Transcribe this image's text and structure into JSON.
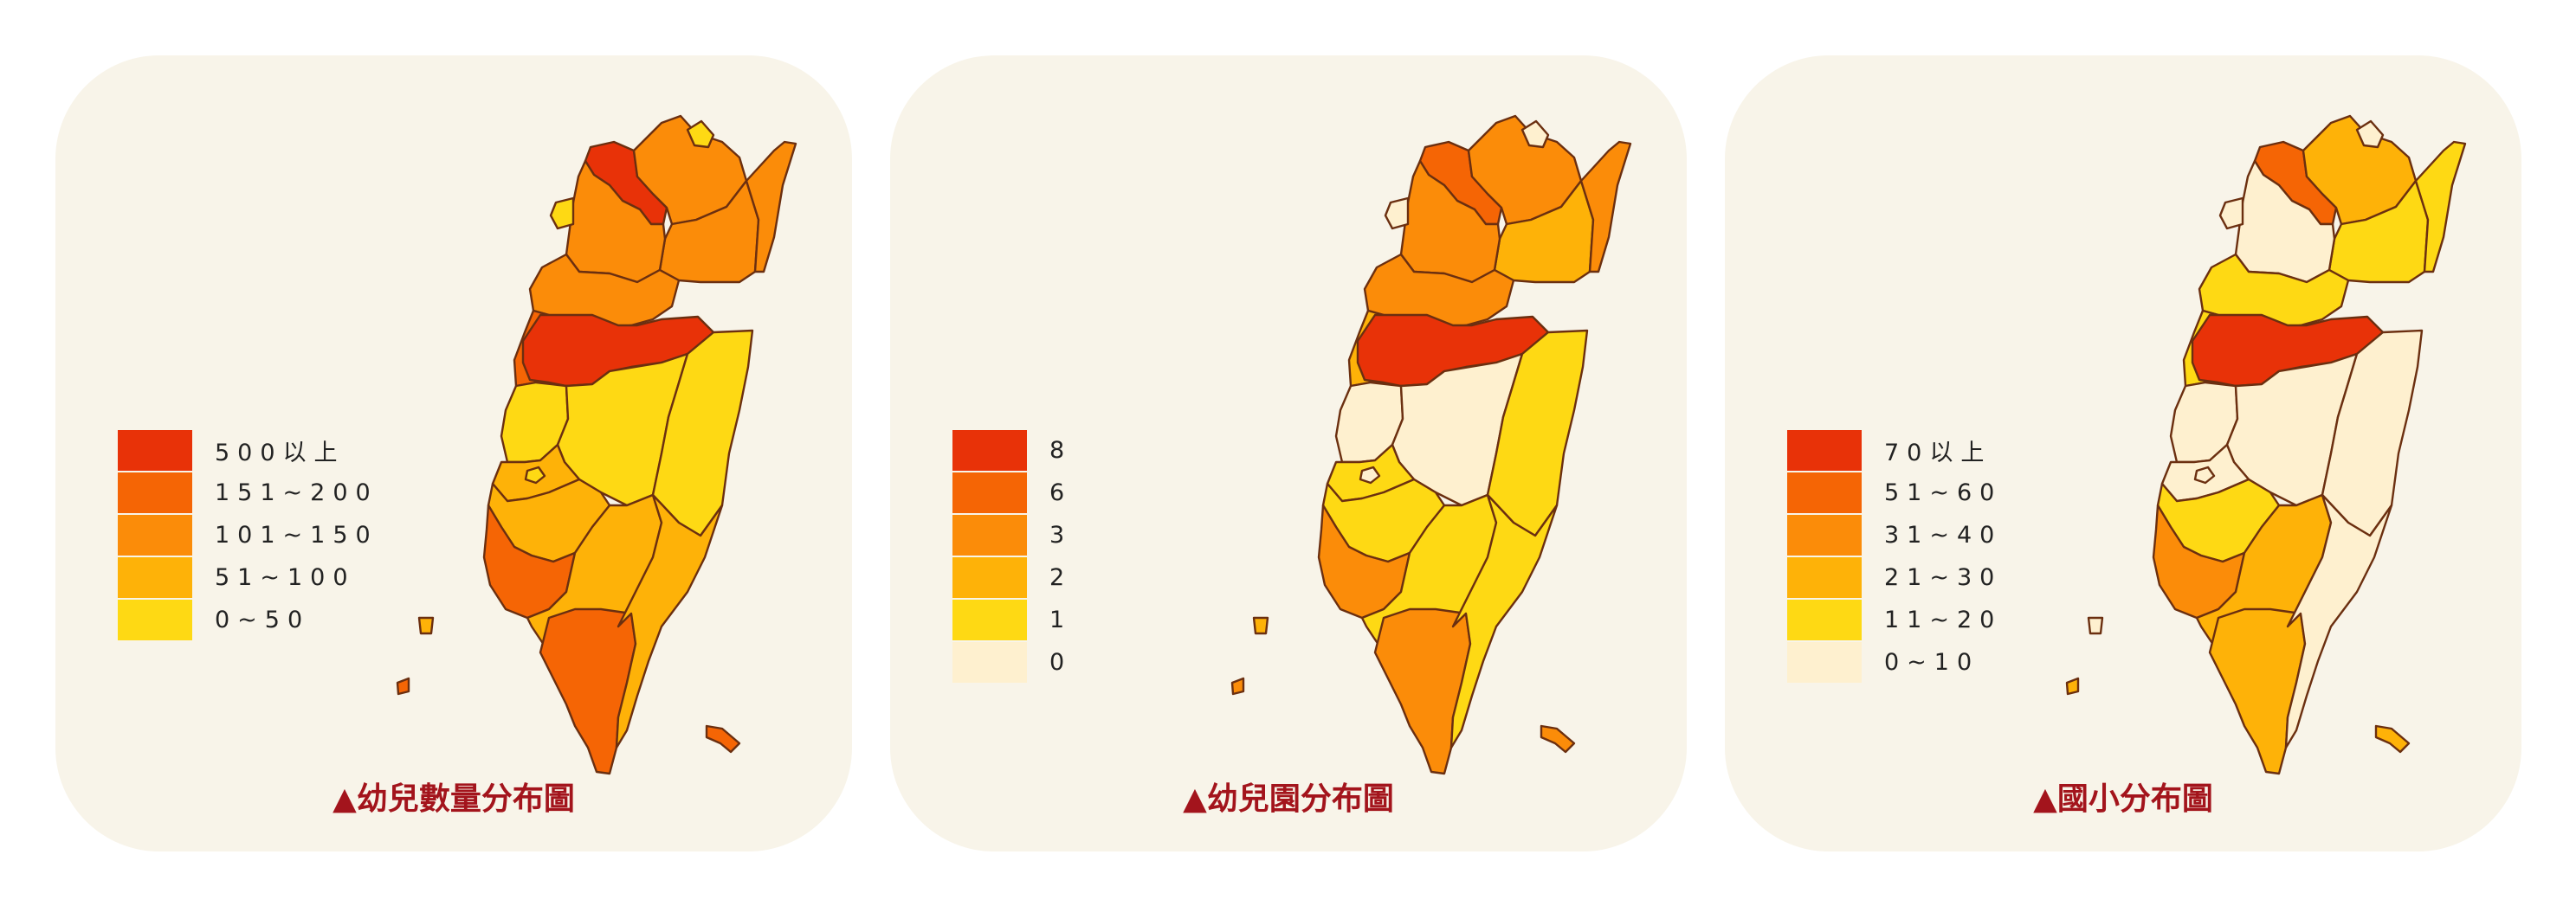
{
  "legend_colors": [
    "#e83208",
    "#f56505",
    "#fb8c09",
    "#feb208",
    "#fed914",
    "#fef0cf"
  ],
  "panels": [
    {
      "caption": "▲幼兒數量分布圖",
      "legend": [
        {
          "label": "500以上",
          "color": "#e83208"
        },
        {
          "label": "151~200",
          "color": "#f56505"
        },
        {
          "label": "101~150",
          "color": "#fb8c09"
        },
        {
          "label": "51~100",
          "color": "#feb208"
        },
        {
          "label": "0~50",
          "color": "#fed914"
        }
      ],
      "region_levels": {
        "taipei": 0,
        "new-taipei-north": 2,
        "new-taipei-east": 2,
        "keelung": 4,
        "taoyuan": 2,
        "hsinchu-county": 2,
        "hsinchu-city": 4,
        "yilan": 2,
        "taichung": 0,
        "miaoli": 1,
        "nantou": 4,
        "hualien": 4,
        "changhua": 4,
        "yunlin": 3,
        "chiayi-county": 3,
        "chiayi-city": 4,
        "tainan": 1,
        "kaohsiung": 3,
        "pingtung": 1,
        "taitung": 3,
        "penghu": 3,
        "kinmen": 1,
        "lanyu": 1
      }
    },
    {
      "caption": "▲幼兒園分布圖",
      "legend": [
        {
          "label": "8",
          "color": "#e83208"
        },
        {
          "label": "6",
          "color": "#f56505"
        },
        {
          "label": "3",
          "color": "#fb8c09"
        },
        {
          "label": "2",
          "color": "#feb208"
        },
        {
          "label": "1",
          "color": "#fed914"
        },
        {
          "label": "0",
          "color": "#fef0cf"
        }
      ],
      "region_levels": {
        "taipei": 1,
        "new-taipei-north": 2,
        "new-taipei-east": 3,
        "keelung": 5,
        "taoyuan": 2,
        "hsinchu-county": 2,
        "hsinchu-city": 5,
        "yilan": 2,
        "taichung": 0,
        "miaoli": 3,
        "nantou": 5,
        "hualien": 4,
        "changhua": 5,
        "yunlin": 4,
        "chiayi-county": 4,
        "chiayi-city": 5,
        "tainan": 2,
        "kaohsiung": 4,
        "pingtung": 2,
        "taitung": 4,
        "penghu": 3,
        "kinmen": 2,
        "lanyu": 2
      }
    },
    {
      "caption": "▲國小分布圖",
      "legend": [
        {
          "label": "70以上",
          "color": "#e83208"
        },
        {
          "label": "51~60",
          "color": "#f56505"
        },
        {
          "label": "31~40",
          "color": "#fb8c09"
        },
        {
          "label": "21~30",
          "color": "#feb208"
        },
        {
          "label": "11~20",
          "color": "#fed914"
        },
        {
          "label": "0~10",
          "color": "#fef0cf"
        }
      ],
      "region_levels": {
        "taipei": 1,
        "new-taipei-north": 3,
        "new-taipei-east": 4,
        "keelung": 5,
        "taoyuan": 5,
        "hsinchu-county": 4,
        "hsinchu-city": 5,
        "yilan": 4,
        "taichung": 0,
        "miaoli": 4,
        "nantou": 5,
        "hualien": 5,
        "changhua": 5,
        "yunlin": 5,
        "chiayi-county": 4,
        "chiayi-city": 5,
        "tainan": 2,
        "kaohsiung": 3,
        "pingtung": 3,
        "taitung": 5,
        "penghu": 5,
        "kinmen": 3,
        "lanyu": 3
      }
    }
  ]
}
